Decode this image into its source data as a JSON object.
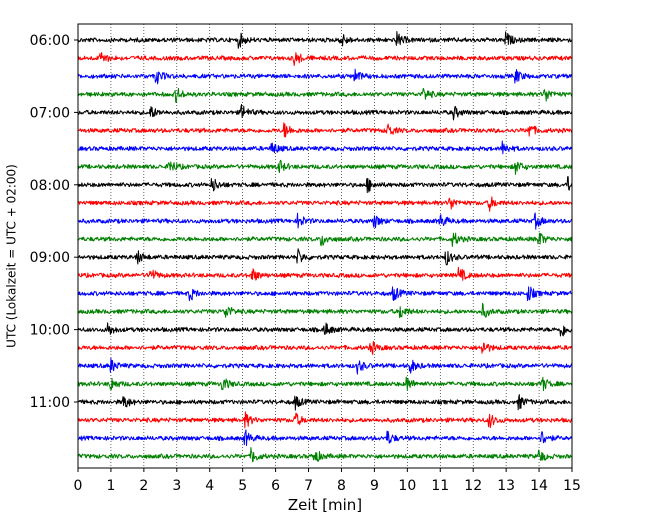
{
  "chart_data": {
    "type": "line",
    "xlabel": "Zeit  [min]",
    "ylabel": "UTC (Lokalzeit = UTC + 02:00)",
    "xlim": [
      0,
      15
    ],
    "x_ticks": [
      0,
      1,
      2,
      3,
      4,
      5,
      6,
      7,
      8,
      9,
      10,
      11,
      12,
      13,
      14,
      15
    ],
    "y_ticks": [
      "06:00",
      "07:00",
      "08:00",
      "09:00",
      "10:00",
      "11:00"
    ],
    "grid": "vertical dotted at each minute",
    "trace_interval_min": 15,
    "trace_start": "06:00",
    "trace_count": 24,
    "trace_colors": [
      "#000000",
      "#ff0000",
      "#0000ff",
      "#008000"
    ],
    "series": [
      {
        "start": "06:00",
        "color": "#000000",
        "events_min": [
          4.9,
          8.0,
          9.7,
          13.0
        ]
      },
      {
        "start": "06:15",
        "color": "#ff0000",
        "events_min": [
          0.7,
          6.6
        ]
      },
      {
        "start": "06:30",
        "color": "#0000ff",
        "events_min": [
          2.4,
          8.4,
          13.3
        ]
      },
      {
        "start": "06:45",
        "color": "#008000",
        "events_min": [
          3.0,
          10.5,
          14.2
        ]
      },
      {
        "start": "07:00",
        "color": "#000000",
        "events_min": [
          2.2,
          5.0,
          11.4
        ]
      },
      {
        "start": "07:15",
        "color": "#ff0000",
        "events_min": [
          6.3,
          9.4,
          13.7
        ]
      },
      {
        "start": "07:30",
        "color": "#0000ff",
        "events_min": [
          5.9,
          12.9
        ]
      },
      {
        "start": "07:45",
        "color": "#008000",
        "events_min": [
          2.8,
          6.1,
          13.3
        ]
      },
      {
        "start": "08:00",
        "color": "#000000",
        "events_min": [
          4.1,
          8.8,
          14.9
        ]
      },
      {
        "start": "08:15",
        "color": "#ff0000",
        "events_min": [
          11.3,
          12.5
        ]
      },
      {
        "start": "08:30",
        "color": "#0000ff",
        "events_min": [
          6.7,
          9.0,
          11.0,
          13.9
        ]
      },
      {
        "start": "08:45",
        "color": "#008000",
        "events_min": [
          7.4,
          11.4,
          14.0
        ]
      },
      {
        "start": "09:00",
        "color": "#000000",
        "events_min": [
          1.8,
          6.7,
          11.2
        ]
      },
      {
        "start": "09:15",
        "color": "#ff0000",
        "events_min": [
          2.2,
          5.3,
          11.6
        ]
      },
      {
        "start": "09:30",
        "color": "#0000ff",
        "events_min": [
          3.4,
          9.6,
          13.7
        ]
      },
      {
        "start": "09:45",
        "color": "#008000",
        "events_min": [
          4.5,
          9.8,
          12.3
        ]
      },
      {
        "start": "10:00",
        "color": "#000000",
        "events_min": [
          0.9,
          7.5,
          14.7
        ]
      },
      {
        "start": "10:15",
        "color": "#ff0000",
        "events_min": [
          8.9,
          12.3
        ]
      },
      {
        "start": "10:30",
        "color": "#0000ff",
        "events_min": [
          1.0,
          8.5,
          10.1
        ]
      },
      {
        "start": "10:45",
        "color": "#008000",
        "events_min": [
          1.0,
          4.4,
          10.0,
          14.1
        ]
      },
      {
        "start": "11:00",
        "color": "#000000",
        "events_min": [
          1.4,
          6.6,
          13.4
        ]
      },
      {
        "start": "11:15",
        "color": "#ff0000",
        "events_min": [
          5.1,
          6.6,
          12.5
        ]
      },
      {
        "start": "11:30",
        "color": "#0000ff",
        "events_min": [
          5.1,
          9.4,
          14.1
        ]
      },
      {
        "start": "11:45",
        "color": "#008000",
        "events_min": [
          5.3,
          7.2,
          14.0
        ]
      }
    ]
  }
}
